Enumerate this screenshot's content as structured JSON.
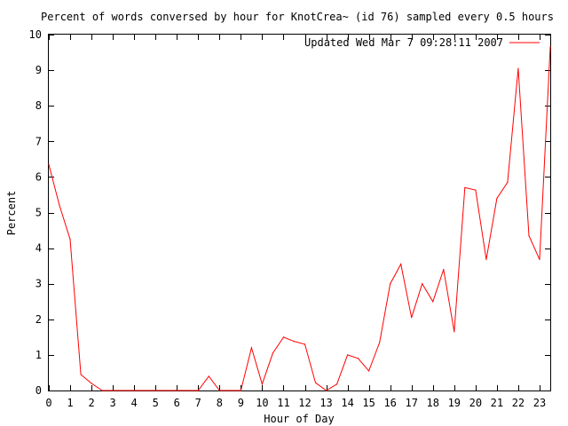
{
  "chart_data": {
    "type": "line",
    "title": "Percent of words conversed by hour for KnotCrea~ (id 76) sampled every 0.5 hours",
    "xlabel": "Hour of Day",
    "ylabel": "Percent",
    "xlim": [
      0,
      23.5
    ],
    "ylim": [
      0,
      10
    ],
    "xticks": [
      0,
      1,
      2,
      3,
      4,
      5,
      6,
      7,
      8,
      9,
      10,
      11,
      12,
      13,
      14,
      15,
      16,
      17,
      18,
      19,
      20,
      21,
      22,
      23
    ],
    "yticks": [
      0,
      1,
      2,
      3,
      4,
      5,
      6,
      7,
      8,
      9,
      10
    ],
    "grid": false,
    "legend_position": "top-right",
    "series": [
      {
        "name": "Updated Wed Mar  7 09:28:11 2007",
        "color": "#ff0000",
        "x": [
          0,
          0.5,
          1,
          1.5,
          2,
          2.5,
          3,
          3.5,
          4,
          4.5,
          5,
          5.5,
          6,
          6.5,
          7,
          7.5,
          8,
          8.5,
          9,
          9.5,
          10,
          10.5,
          11,
          11.5,
          12,
          12.5,
          13,
          13.5,
          14,
          14.5,
          15,
          15.5,
          16,
          16.5,
          17,
          17.5,
          18,
          18.5,
          19,
          19.5,
          20,
          20.5,
          21,
          21.5,
          22,
          22.5,
          23,
          23.5
        ],
        "y": [
          6.35,
          5.2,
          4.25,
          0.45,
          0.2,
          0,
          0,
          0,
          0,
          0,
          0,
          0,
          0,
          0,
          0,
          0.4,
          0,
          0,
          0,
          1.2,
          0.18,
          1.05,
          1.5,
          1.38,
          1.3,
          0.22,
          0,
          0.18,
          1,
          0.9,
          0.55,
          1.35,
          3,
          3.55,
          2.05,
          3,
          2.5,
          3.4,
          1.65,
          5.7,
          5.63,
          3.68,
          5.4,
          5.85,
          9.05,
          4.35,
          3.68,
          9.65
        ]
      }
    ]
  }
}
